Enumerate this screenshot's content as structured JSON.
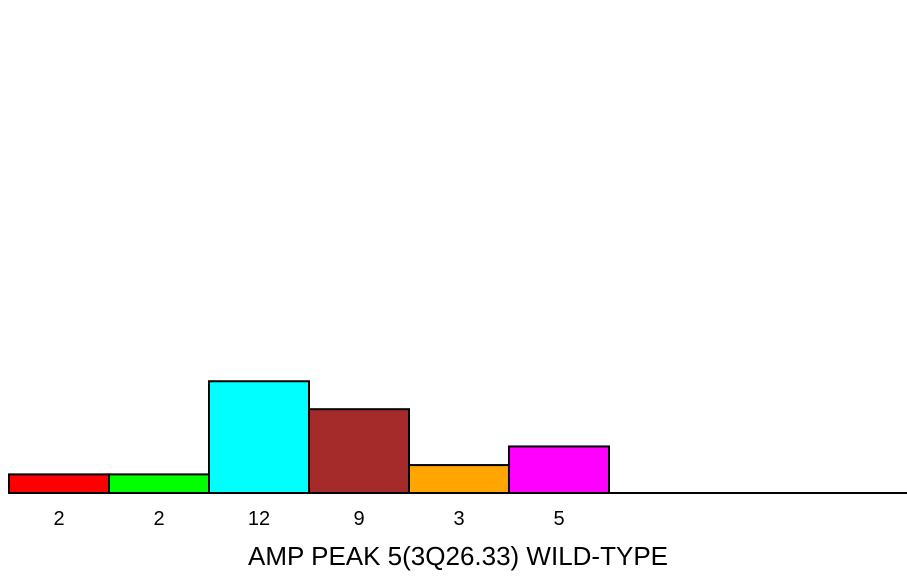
{
  "chart_data": {
    "type": "bar",
    "title": "AMP PEAK  5(3Q26.33) WILD-TYPE",
    "categories": [
      "2",
      "2",
      "12",
      "9",
      "3",
      "5"
    ],
    "values": [
      2,
      2,
      12,
      9,
      3,
      5
    ],
    "colors": [
      "#ff0000",
      "#00ff00",
      "#00ffff",
      "#a52a2a",
      "#ffa500",
      "#ff00ff"
    ],
    "ylim": [
      0,
      48
    ],
    "grid": false,
    "legend": "none"
  }
}
